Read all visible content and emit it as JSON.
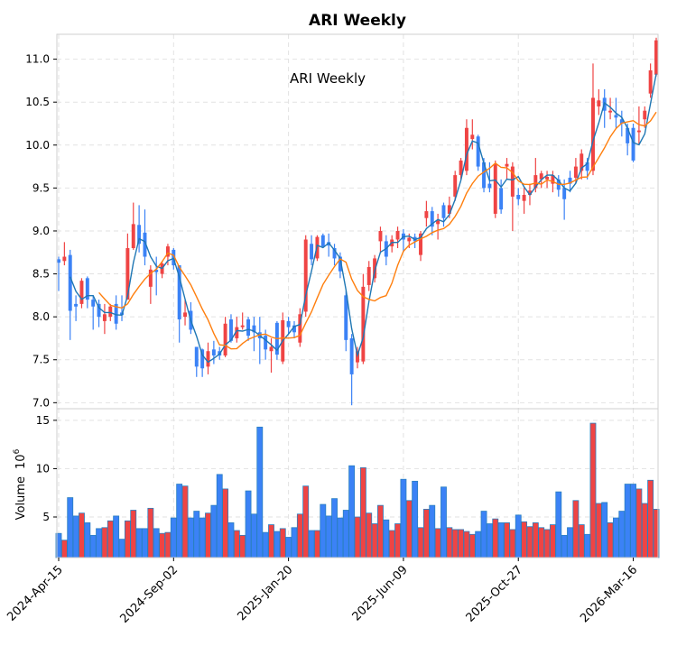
{
  "chart_data": {
    "type": "candlestick",
    "title": "ARI  Weekly",
    "inner_title": "ARI  Weekly",
    "ylabel_volume": "Volume",
    "volume_exponent": "10",
    "volume_exponent_power": "6",
    "price_ylim": [
      6.93,
      11.29
    ],
    "volume_ylim": [
      0.8,
      16.2
    ],
    "price_yticks": [
      "7.0",
      "7.5",
      "8.0",
      "8.5",
      "9.0",
      "9.5",
      "10.0",
      "10.5",
      "11.0"
    ],
    "volume_yticks": [
      "5",
      "10",
      "15"
    ],
    "xticks": [
      {
        "index": 0,
        "label": "2024-Apr-15"
      },
      {
        "index": 20,
        "label": "2024-Sep-02"
      },
      {
        "index": 40,
        "label": "2025-Jan-20"
      },
      {
        "index": 60,
        "label": "2025-Jun-09"
      },
      {
        "index": 80,
        "label": "2025-Oct-27"
      },
      {
        "index": 100,
        "label": "2026-Mar-16"
      }
    ],
    "grid": true,
    "moving_averages": [
      3,
      8
    ],
    "colors": {
      "up": "#ef4444",
      "down": "#3b82f6",
      "edge": "#2a7fc0",
      "ma1": "#1f77b4",
      "ma2": "#ff7f0e",
      "grid": "#e2e2e2"
    },
    "ohlc": [
      [
        8.67,
        8.7,
        8.3,
        8.63
      ],
      [
        8.65,
        8.87,
        8.6,
        8.7
      ],
      [
        8.72,
        8.78,
        7.73,
        8.07
      ],
      [
        8.15,
        8.25,
        7.95,
        8.12
      ],
      [
        8.15,
        8.45,
        8.1,
        8.42
      ],
      [
        8.45,
        8.47,
        8.1,
        8.2
      ],
      [
        8.2,
        8.25,
        7.85,
        8.12
      ],
      [
        8.15,
        8.2,
        7.88,
        8.0
      ],
      [
        7.95,
        8.15,
        7.8,
        8.03
      ],
      [
        8.0,
        8.15,
        7.95,
        8.12
      ],
      [
        8.15,
        8.25,
        7.85,
        7.92
      ],
      [
        8.05,
        8.25,
        7.95,
        8.02
      ],
      [
        8.2,
        8.97,
        8.2,
        8.8
      ],
      [
        8.8,
        9.33,
        8.78,
        9.08
      ],
      [
        9.07,
        9.3,
        8.75,
        8.85
      ],
      [
        8.98,
        9.25,
        8.6,
        8.7
      ],
      [
        8.35,
        8.6,
        8.15,
        8.55
      ],
      [
        8.55,
        8.7,
        8.25,
        8.52
      ],
      [
        8.5,
        8.65,
        8.45,
        8.62
      ],
      [
        8.7,
        8.85,
        8.6,
        8.82
      ],
      [
        8.78,
        8.8,
        8.55,
        8.6
      ],
      [
        8.6,
        8.6,
        7.7,
        7.97
      ],
      [
        8.0,
        8.2,
        7.9,
        8.05
      ],
      [
        8.07,
        8.17,
        7.8,
        7.85
      ],
      [
        7.65,
        7.65,
        7.3,
        7.42
      ],
      [
        7.62,
        7.63,
        7.3,
        7.4
      ],
      [
        7.42,
        7.7,
        7.33,
        7.6
      ],
      [
        7.62,
        7.72,
        7.45,
        7.55
      ],
      [
        7.6,
        7.65,
        7.5,
        7.55
      ],
      [
        7.55,
        8.0,
        7.53,
        7.92
      ],
      [
        7.97,
        8.03,
        7.7,
        7.72
      ],
      [
        7.75,
        8.0,
        7.7,
        7.88
      ],
      [
        7.88,
        8.05,
        7.85,
        7.9
      ],
      [
        7.97,
        8.0,
        7.72,
        7.78
      ],
      [
        7.9,
        8.0,
        7.6,
        7.82
      ],
      [
        7.82,
        8.0,
        7.45,
        7.75
      ],
      [
        7.78,
        7.85,
        7.5,
        7.62
      ],
      [
        7.6,
        7.75,
        7.35,
        7.65
      ],
      [
        7.93,
        7.95,
        7.5,
        7.56
      ],
      [
        7.48,
        8.05,
        7.45,
        7.96
      ],
      [
        7.95,
        8.0,
        7.8,
        7.88
      ],
      [
        7.9,
        7.95,
        7.75,
        7.82
      ],
      [
        7.7,
        8.1,
        7.65,
        8.03
      ],
      [
        8.06,
        8.95,
        8.0,
        8.9
      ],
      [
        8.85,
        8.95,
        8.6,
        8.67
      ],
      [
        8.68,
        8.95,
        8.65,
        8.93
      ],
      [
        8.95,
        8.97,
        8.8,
        8.82
      ],
      [
        8.87,
        8.97,
        8.7,
        8.83
      ],
      [
        8.8,
        8.85,
        8.6,
        8.68
      ],
      [
        8.7,
        8.75,
        8.45,
        8.53
      ],
      [
        8.25,
        8.3,
        7.6,
        7.73
      ],
      [
        7.75,
        7.8,
        6.97,
        7.33
      ],
      [
        7.47,
        7.65,
        7.4,
        7.6
      ],
      [
        7.48,
        8.5,
        7.45,
        8.35
      ],
      [
        8.37,
        8.65,
        8.3,
        8.58
      ],
      [
        8.45,
        8.72,
        8.4,
        8.68
      ],
      [
        8.88,
        9.05,
        8.75,
        9.0
      ],
      [
        8.88,
        8.95,
        8.6,
        8.7
      ],
      [
        8.82,
        8.95,
        8.75,
        8.9
      ],
      [
        8.9,
        9.05,
        8.8,
        9.0
      ],
      [
        8.97,
        9.02,
        8.75,
        8.9
      ],
      [
        8.88,
        8.97,
        8.8,
        8.92
      ],
      [
        8.93,
        8.97,
        8.8,
        8.88
      ],
      [
        8.72,
        9.0,
        8.65,
        8.97
      ],
      [
        9.15,
        9.35,
        9.05,
        9.23
      ],
      [
        9.23,
        9.28,
        8.95,
        9.05
      ],
      [
        9.08,
        9.2,
        8.9,
        9.12
      ],
      [
        9.3,
        9.33,
        9.05,
        9.15
      ],
      [
        9.2,
        9.4,
        9.15,
        9.3
      ],
      [
        9.4,
        9.7,
        9.35,
        9.65
      ],
      [
        9.65,
        9.85,
        9.6,
        9.82
      ],
      [
        9.7,
        10.3,
        9.65,
        10.2
      ],
      [
        10.07,
        10.3,
        9.95,
        10.12
      ],
      [
        10.1,
        10.12,
        9.7,
        9.75
      ],
      [
        9.8,
        9.85,
        9.45,
        9.5
      ],
      [
        9.55,
        9.8,
        9.45,
        9.5
      ],
      [
        9.2,
        9.82,
        9.15,
        9.78
      ],
      [
        9.5,
        9.6,
        9.2,
        9.25
      ],
      [
        9.75,
        9.85,
        9.6,
        9.78
      ],
      [
        9.4,
        9.8,
        9.0,
        9.75
      ],
      [
        9.42,
        9.5,
        9.3,
        9.37
      ],
      [
        9.35,
        9.5,
        9.2,
        9.42
      ],
      [
        9.42,
        9.55,
        9.3,
        9.47
      ],
      [
        9.5,
        9.85,
        9.45,
        9.65
      ],
      [
        9.6,
        9.7,
        9.5,
        9.67
      ],
      [
        9.6,
        9.7,
        9.5,
        9.63
      ],
      [
        9.55,
        9.7,
        9.45,
        9.65
      ],
      [
        9.6,
        9.65,
        9.4,
        9.48
      ],
      [
        9.5,
        9.6,
        9.13,
        9.37
      ],
      [
        9.62,
        9.7,
        9.45,
        9.55
      ],
      [
        9.62,
        9.85,
        9.55,
        9.75
      ],
      [
        9.7,
        9.95,
        9.6,
        9.9
      ],
      [
        9.8,
        9.85,
        9.6,
        9.7
      ],
      [
        9.7,
        10.95,
        9.65,
        10.55
      ],
      [
        10.45,
        10.65,
        10.35,
        10.52
      ],
      [
        10.55,
        10.65,
        10.2,
        10.4
      ],
      [
        10.38,
        10.55,
        10.3,
        10.4
      ],
      [
        10.35,
        10.55,
        10.2,
        10.32
      ],
      [
        10.3,
        10.4,
        10.1,
        10.25
      ],
      [
        10.2,
        10.25,
        9.88,
        10.02
      ],
      [
        10.2,
        10.25,
        9.8,
        9.82
      ],
      [
        10.15,
        10.45,
        10.0,
        10.17
      ],
      [
        10.3,
        10.45,
        10.2,
        10.4
      ],
      [
        10.6,
        10.95,
        10.55,
        10.87
      ],
      [
        10.82,
        11.25,
        10.8,
        11.22
      ]
    ],
    "volume": [
      3.3,
      2.6,
      7.0,
      5.1,
      5.4,
      4.4,
      3.1,
      3.8,
      3.9,
      4.6,
      5.1,
      2.7,
      4.6,
      5.7,
      3.8,
      3.8,
      5.9,
      3.8,
      3.3,
      3.4,
      4.9,
      8.4,
      8.2,
      4.9,
      5.6,
      4.9,
      5.4,
      6.2,
      9.4,
      7.9,
      4.4,
      3.6,
      3.1,
      7.7,
      5.3,
      14.3,
      3.4,
      4.2,
      3.5,
      3.8,
      2.9,
      3.9,
      5.3,
      8.2,
      3.6,
      3.6,
      6.3,
      5.1,
      6.9,
      4.9,
      5.7,
      10.3,
      5.0,
      10.1,
      5.4,
      4.3,
      6.2,
      4.7,
      3.6,
      4.3,
      8.9,
      6.7,
      8.7,
      3.9,
      5.8,
      6.2,
      3.8,
      8.1,
      3.9,
      3.7,
      3.7,
      3.5,
      3.2,
      3.5,
      5.6,
      4.3,
      4.8,
      4.4,
      4.4,
      3.7,
      5.2,
      4.5,
      4.0,
      4.4,
      3.9,
      3.7,
      4.2,
      7.6,
      3.1,
      3.9,
      6.7,
      4.2,
      3.2,
      14.7,
      6.4,
      6.5,
      4.4,
      4.9,
      5.6,
      8.4,
      8.4,
      7.9,
      6.4,
      8.8,
      5.8
    ]
  }
}
